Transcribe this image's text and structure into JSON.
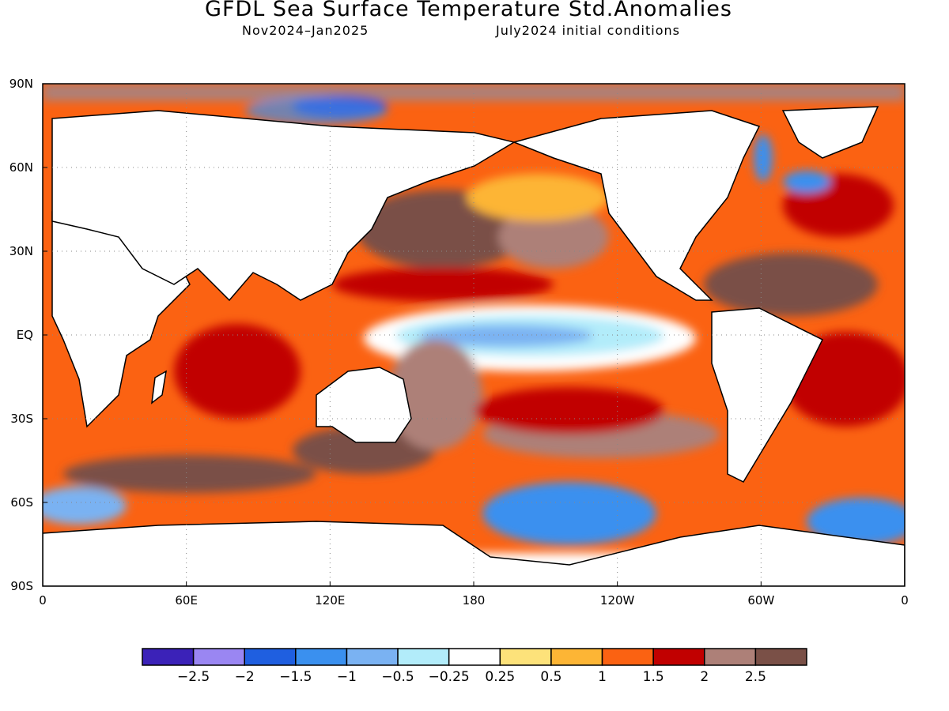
{
  "title": "GFDL Sea Surface Temperature Std.Anomalies",
  "subtitle_left": "Nov2024–Jan2025",
  "subtitle_right": "July2024 initial conditions",
  "map": {
    "projection": "equirectangular",
    "lon_range": [
      0,
      360
    ],
    "lat_range": [
      -90,
      90
    ],
    "x_ticks": [
      {
        "lon": 0,
        "label": "0"
      },
      {
        "lon": 60,
        "label": "60E"
      },
      {
        "lon": 120,
        "label": "120E"
      },
      {
        "lon": 180,
        "label": "180"
      },
      {
        "lon": 240,
        "label": "120W"
      },
      {
        "lon": 300,
        "label": "60W"
      },
      {
        "lon": 360,
        "label": "0"
      }
    ],
    "y_ticks": [
      {
        "lat": 90,
        "label": "90N"
      },
      {
        "lat": 60,
        "label": "60N"
      },
      {
        "lat": 30,
        "label": "30N"
      },
      {
        "lat": 0,
        "label": "EQ"
      },
      {
        "lat": -30,
        "label": "30S"
      },
      {
        "lat": -60,
        "label": "60S"
      },
      {
        "lat": -90,
        "label": "90S"
      }
    ],
    "grid": "dotted"
  },
  "colorbar": {
    "colors": [
      "#3b22b8",
      "#9a86f2",
      "#1f5fe0",
      "#3a90ef",
      "#7ab2f2",
      "#b2ecfa",
      "#ffffff",
      "#fde27a",
      "#fdb535",
      "#fb6212",
      "#c10000",
      "#ad8078",
      "#7a5047"
    ],
    "labels": [
      "−2.5",
      "−2",
      "−1.5",
      "−1",
      "−0.5",
      "−0.25",
      "0.25",
      "0.5",
      "1",
      "1.5",
      "2",
      "2.5"
    ]
  }
}
